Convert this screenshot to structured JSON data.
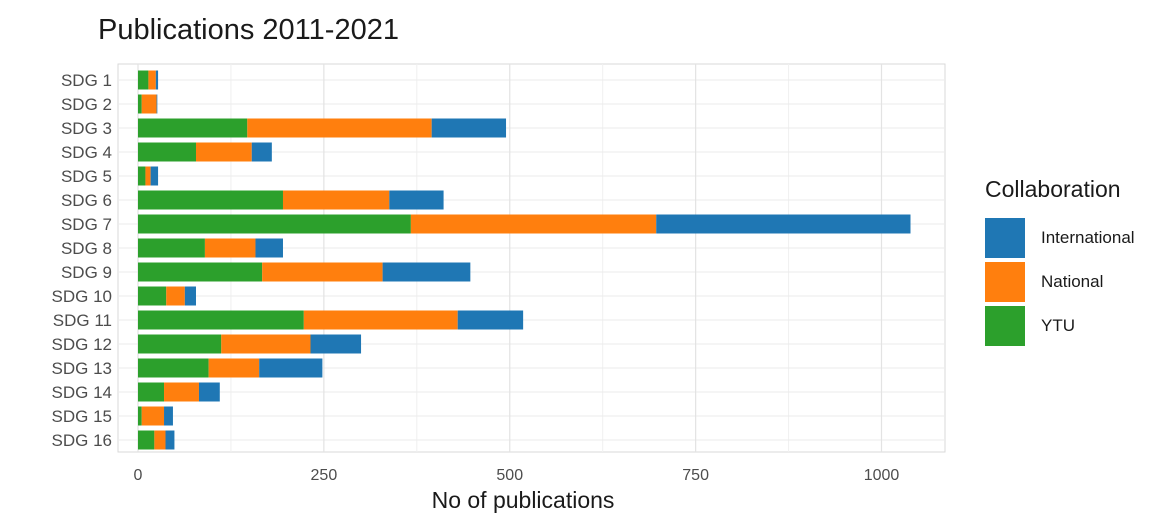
{
  "chart_data": {
    "type": "bar",
    "orientation": "horizontal",
    "stacked": true,
    "title": "Publications 2011-2021",
    "xlabel": "No of publications",
    "ylabel": "",
    "xlim": [
      -50,
      1090
    ],
    "xticks": [
      0,
      250,
      500,
      750,
      1000
    ],
    "xtick_labels": [
      "0",
      "250",
      "500",
      "750",
      "1000"
    ],
    "grid": true,
    "legend_position": "right",
    "legend_title": "Collaboration",
    "categories": [
      "SDG 1",
      "SDG 2",
      "SDG 3",
      "SDG 4",
      "SDG 5",
      "SDG 6",
      "SDG 7",
      "SDG 8",
      "SDG 9",
      "SDG 10",
      "SDG 11",
      "SDG 12",
      "SDG 13",
      "SDG 14",
      "SDG 15",
      "SDG 16"
    ],
    "series": [
      {
        "name": "YTU",
        "color": "#2ca02c",
        "values": [
          14,
          5,
          147,
          78,
          10,
          195,
          367,
          90,
          167,
          38,
          223,
          112,
          95,
          35,
          5,
          22
        ]
      },
      {
        "name": "National",
        "color": "#ff7f0e",
        "values": [
          10,
          20,
          248,
          75,
          7,
          143,
          330,
          68,
          162,
          25,
          207,
          120,
          68,
          47,
          30,
          15
        ]
      },
      {
        "name": "International",
        "color": "#1f77b4",
        "values": [
          3,
          1,
          100,
          27,
          10,
          73,
          342,
          37,
          118,
          15,
          88,
          68,
          85,
          28,
          12,
          12
        ]
      }
    ],
    "legend_order": [
      "International",
      "National",
      "YTU"
    ]
  }
}
